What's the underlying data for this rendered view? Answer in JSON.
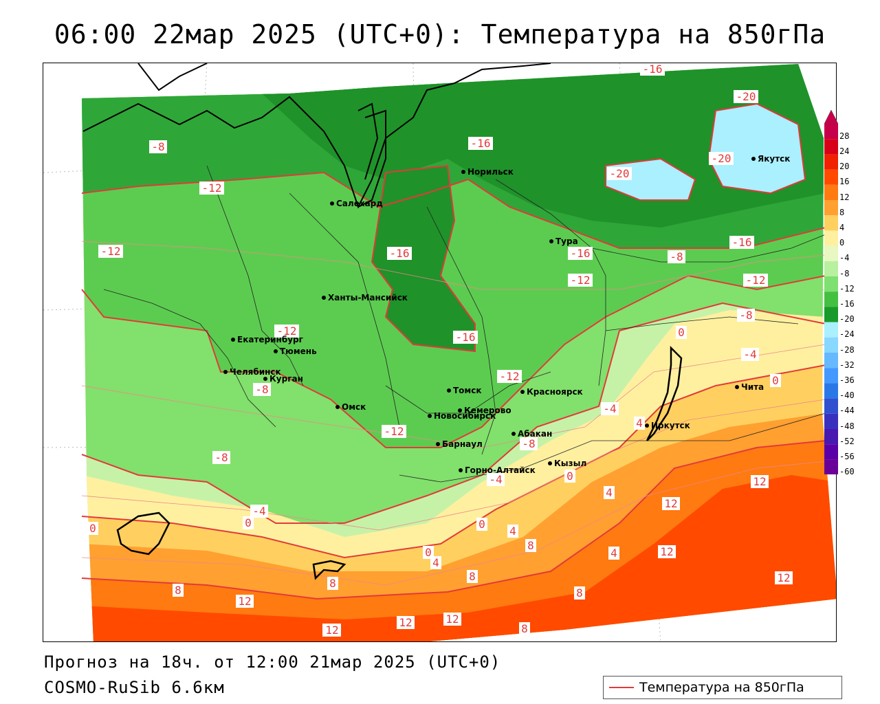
{
  "title": "06:00 22мар 2025 (UTC+0): Температура на 850гПа",
  "footer": {
    "forecast": "Прогноз на 18ч. от 12:00 21мар 2025 (UTC+0)",
    "model": "COSMO-RuSib 6.6км"
  },
  "legend": {
    "label": "Температура на 850гПа",
    "line_color": "#e23a3a"
  },
  "colorbar": {
    "labels": [
      "28",
      "24",
      "20",
      "16",
      "12",
      "8",
      "4",
      "0",
      "-4",
      "-8",
      "-12",
      "-16",
      "-20",
      "-24",
      "-28",
      "-32",
      "-36",
      "-40",
      "-44",
      "-48",
      "-52",
      "-56",
      "-60"
    ],
    "colors": [
      "#c7004a",
      "#d80018",
      "#f02000",
      "#ff4a00",
      "#ff7a10",
      "#ffa030",
      "#ffd060",
      "#fff0a0",
      "#e8f8c0",
      "#b8f0a0",
      "#7ee070",
      "#44c040",
      "#1a9a2a",
      "#aaf0ff",
      "#88d8ff",
      "#66b8ff",
      "#4498ff",
      "#2a78e8",
      "#3050d0",
      "#3a30c0",
      "#4818b0",
      "#5a00a8",
      "#6a0098"
    ]
  },
  "cities": [
    {
      "name": "Норильск"
    },
    {
      "name": "Якутск"
    },
    {
      "name": "Салехард"
    },
    {
      "name": "Тура"
    },
    {
      "name": "Ханты-Мансийск"
    },
    {
      "name": "Екатеринбург"
    },
    {
      "name": "Тюмень"
    },
    {
      "name": "Челябинск"
    },
    {
      "name": "Курган"
    },
    {
      "name": "Омск"
    },
    {
      "name": "Новосибирск"
    },
    {
      "name": "Томск"
    },
    {
      "name": "Кемерово"
    },
    {
      "name": "Красноярск"
    },
    {
      "name": "Барнаул"
    },
    {
      "name": "Абакан"
    },
    {
      "name": "Кызыл"
    },
    {
      "name": "Горно-Алтайск"
    },
    {
      "name": "Иркутск"
    },
    {
      "name": "Чита"
    }
  ],
  "isotherm_labels": [
    "-16",
    "-20",
    "-16",
    "-20",
    "-20",
    "-8",
    "-12",
    "-16",
    "-16",
    "-12",
    "-16",
    "-12",
    "-8",
    "-12",
    "-16",
    "-12",
    "-12",
    "-8",
    "-8",
    "-12",
    "-8",
    "-4",
    "0",
    "4",
    "0",
    "-4",
    "-8",
    "-4",
    "0",
    "12",
    "12",
    "12",
    "12",
    "12",
    "12",
    "4",
    "0",
    "-4",
    "4",
    "8",
    "8",
    "8",
    "8",
    "12",
    "12",
    "12",
    "8",
    "0",
    "4",
    "0",
    "4",
    "4",
    "8",
    "0"
  ]
}
